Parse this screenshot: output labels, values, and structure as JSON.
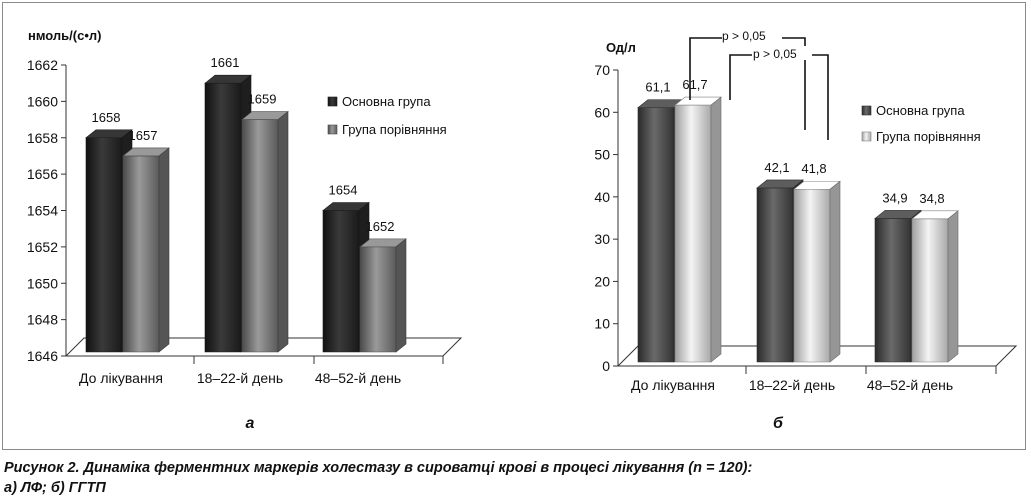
{
  "caption": {
    "line1": "Рисунок 2. Динаміка ферментних маркерів холестазу в сироватці крові в процесі лікування (n = 120):",
    "line2": "а) ЛФ; б) ГГТП"
  },
  "chart_data": [
    {
      "type": "bar",
      "panel_label": "а",
      "ylabel": "нмоль/(с•л)",
      "ylim": [
        1646,
        1662
      ],
      "yticks": [
        1646,
        1648,
        1650,
        1652,
        1654,
        1656,
        1658,
        1660,
        1662
      ],
      "categories": [
        "До лікування",
        "18–22-й день",
        "48–52-й день"
      ],
      "series": [
        {
          "name": "Основна група",
          "values": [
            1658,
            1661,
            1654
          ],
          "labels": [
            "1658",
            "1661",
            "1654"
          ],
          "color": "#2b2b2b"
        },
        {
          "name": "Група порівняння",
          "values": [
            1657,
            1659,
            1652
          ],
          "labels": [
            "1657",
            "1659",
            "1652"
          ],
          "color": "#7a7a7a"
        }
      ],
      "legend": "right",
      "grid": false
    },
    {
      "type": "bar",
      "panel_label": "б",
      "ylabel": "Од/л",
      "ylim": [
        0,
        70
      ],
      "yticks": [
        0,
        10,
        20,
        30,
        40,
        50,
        60,
        70
      ],
      "categories": [
        "До лікування",
        "18–22-й день",
        "48–52-й день"
      ],
      "series": [
        {
          "name": "Основна група",
          "values": [
            61.1,
            42.1,
            34.9
          ],
          "labels": [
            "61,1",
            "42,1",
            "34,9"
          ],
          "color": "#4a4a4a"
        },
        {
          "name": "Група порівняння",
          "values": [
            61.7,
            41.8,
            34.8
          ],
          "labels": [
            "61,7",
            "41,8",
            "34,8"
          ],
          "color": "#d6d6d6"
        }
      ],
      "annotations": [
        "р > 0,05",
        "р > 0,05"
      ],
      "legend": "right",
      "grid": false
    }
  ]
}
